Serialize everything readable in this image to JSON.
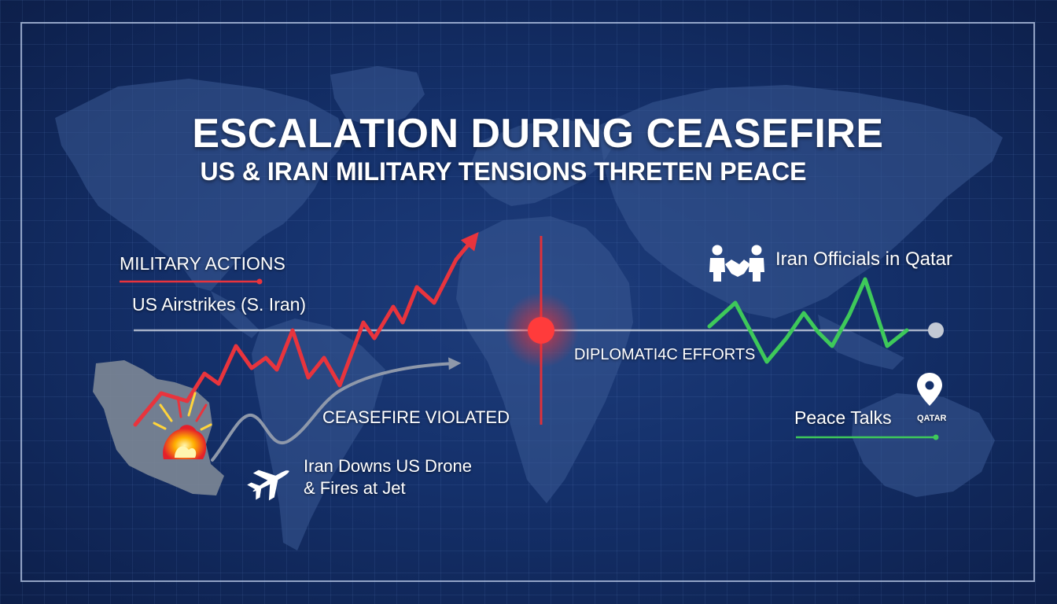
{
  "header": {
    "title": "ESCALATION DURING CEASEFIRE",
    "subtitle": "US & IRAN MILITARY TENSIONS THRETEN PEACE"
  },
  "left_panel": {
    "heading": "MILITARY ACTIONS",
    "event_airstrikes": "US Airstrikes (S. Iran)",
    "event_violation": "CEASEFIRE VIOLATED",
    "event_drone_line1": "Iran Downs US Drone",
    "event_drone_line2": "& Fires at Jet"
  },
  "right_panel": {
    "heading": "DIPLOMATI4C EFFORTS",
    "event_officials": "Iran Officials in Qatar",
    "event_talks": "Peace Talks",
    "location_label": "QATAR"
  },
  "icons": {
    "military": [
      "explosion-icon",
      "jet-icon"
    ],
    "diplomacy": [
      "handshake-icon",
      "location-pin-icon"
    ]
  },
  "colors": {
    "background": "#14306a",
    "military_red": "#e8343d",
    "diplomacy_green": "#3ec95a",
    "flashpoint": "#ff3b3b",
    "neutral_gray": "#8e98aa"
  }
}
